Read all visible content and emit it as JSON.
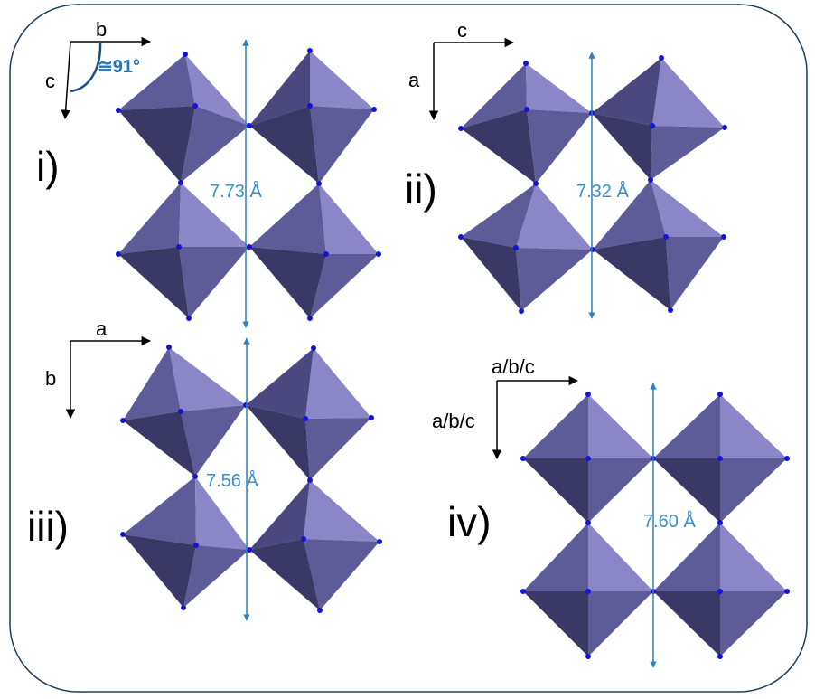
{
  "panels": [
    {
      "id": "i",
      "label": "i)",
      "distance": "7.73 Å",
      "axis_h": "b",
      "axis_v": "c",
      "angle": "≅91°"
    },
    {
      "id": "ii",
      "label": "ii)",
      "distance": "7.32 Å",
      "axis_h": "c",
      "axis_v": "a"
    },
    {
      "id": "iii",
      "label": "iii)",
      "distance": "7.56 Å",
      "axis_h": "a",
      "axis_v": "b"
    },
    {
      "id": "iv",
      "label": "iv)",
      "distance": "7.60 Å",
      "axis_h": "a/b/c",
      "axis_v": "a/b/c"
    }
  ],
  "colors": {
    "octahedron_light": "#8a86c8",
    "octahedron_mid": "#5e5b99",
    "octahedron_dark": "#3a3866",
    "atom": "#1414d6",
    "distance_arrow": "#2c82c0",
    "frame": "#1f3e5a"
  }
}
